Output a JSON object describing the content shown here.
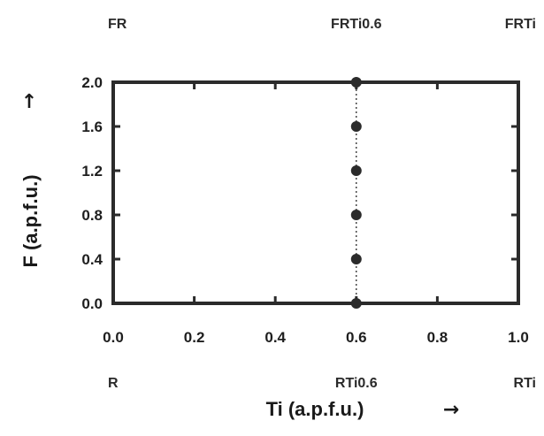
{
  "chart_data": {
    "type": "scatter",
    "title": "",
    "xlabel": "Ti (a.p.f.u.)",
    "ylabel": "F (a.p.f.u.)",
    "xlabel_arrow": "→",
    "ylabel_arrow": "↑",
    "xlim": [
      0.0,
      1.0
    ],
    "ylim": [
      0.0,
      2.0
    ],
    "x_ticks": [
      "0.0",
      "0.2",
      "0.4",
      "0.6",
      "0.8",
      "1.0"
    ],
    "y_ticks": [
      "0.0",
      "0.4",
      "0.8",
      "1.2",
      "1.6",
      "2.0"
    ],
    "grid": false,
    "series": [
      {
        "x": [
          0.6,
          0.6,
          0.6,
          0.6,
          0.6,
          0.6
        ],
        "y": [
          0.0,
          0.4,
          0.8,
          1.2,
          1.6,
          2.0
        ],
        "marker_color": "#2b2b2b",
        "line_style": "dotted"
      }
    ],
    "annotations": {
      "top": [
        {
          "text": "FR",
          "x": 0.0
        },
        {
          "text": "FRTi0.6",
          "x": 0.6
        },
        {
          "text": "FRTi",
          "x": 1.0
        }
      ],
      "bottom": [
        {
          "text": "R",
          "x": 0.0
        },
        {
          "text": "RTi0.6",
          "x": 0.6
        },
        {
          "text": "RTi",
          "x": 1.0
        }
      ]
    },
    "colors": {
      "frame": "#2b2b2b",
      "marker": "#2b2b2b",
      "text": "#1e1e1e"
    }
  }
}
